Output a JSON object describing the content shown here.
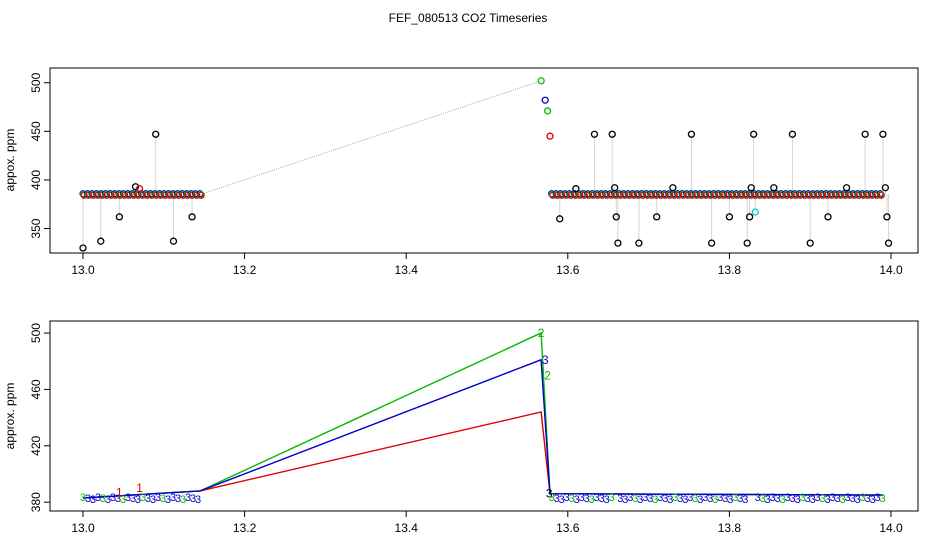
{
  "title": "FEF_080513  CO2 Timeseries",
  "colors": {
    "background": "#ffffff",
    "axis": "#000000",
    "connector": "#aaaaaa",
    "black": "#000000",
    "red": "#dd0000",
    "green": "#00bb00",
    "blue": "#0000cc",
    "cyan": "#00cccc"
  },
  "chart_data": [
    {
      "type": "scatter",
      "panel": "top",
      "xlabel": "",
      "ylabel": "appox. ppm",
      "xlim": [
        13.0,
        14.0
      ],
      "ylim": [
        330,
        510
      ],
      "x_ticks": [
        "13.0",
        "13.2",
        "13.4",
        "13.6",
        "13.8",
        "14.0"
      ],
      "y_ticks": [
        "350",
        "400",
        "450",
        "500"
      ],
      "grid": false,
      "background_points": {
        "ranges": [
          {
            "x_start": 13.0,
            "x_end": 13.145,
            "y": 385
          },
          {
            "x_start": 13.58,
            "x_end": 13.99,
            "y": 385
          }
        ],
        "colors": [
          "blue",
          "green",
          "red"
        ]
      },
      "outliers": [
        {
          "x": 13.0,
          "y": 330,
          "color": "black"
        },
        {
          "x": 13.022,
          "y": 337,
          "color": "black"
        },
        {
          "x": 13.045,
          "y": 362,
          "color": "black"
        },
        {
          "x": 13.065,
          "y": 393,
          "color": "black"
        },
        {
          "x": 13.07,
          "y": 391,
          "color": "red"
        },
        {
          "x": 13.09,
          "y": 447,
          "color": "black"
        },
        {
          "x": 13.112,
          "y": 337,
          "color": "black"
        },
        {
          "x": 13.135,
          "y": 362,
          "color": "black"
        },
        {
          "x": 13.567,
          "y": 502,
          "color": "green"
        },
        {
          "x": 13.572,
          "y": 482,
          "color": "blue"
        },
        {
          "x": 13.575,
          "y": 471,
          "color": "green"
        },
        {
          "x": 13.578,
          "y": 445,
          "color": "red"
        },
        {
          "x": 13.59,
          "y": 360,
          "color": "black"
        },
        {
          "x": 13.61,
          "y": 391,
          "color": "black"
        },
        {
          "x": 13.633,
          "y": 447,
          "color": "black"
        },
        {
          "x": 13.655,
          "y": 447,
          "color": "black"
        },
        {
          "x": 13.658,
          "y": 392,
          "color": "black"
        },
        {
          "x": 13.66,
          "y": 362,
          "color": "black"
        },
        {
          "x": 13.662,
          "y": 335,
          "color": "black"
        },
        {
          "x": 13.688,
          "y": 335,
          "color": "black"
        },
        {
          "x": 13.71,
          "y": 362,
          "color": "black"
        },
        {
          "x": 13.73,
          "y": 392,
          "color": "black"
        },
        {
          "x": 13.753,
          "y": 447,
          "color": "black"
        },
        {
          "x": 13.778,
          "y": 335,
          "color": "black"
        },
        {
          "x": 13.8,
          "y": 362,
          "color": "black"
        },
        {
          "x": 13.822,
          "y": 335,
          "color": "black"
        },
        {
          "x": 13.825,
          "y": 362,
          "color": "black"
        },
        {
          "x": 13.827,
          "y": 392,
          "color": "black"
        },
        {
          "x": 13.83,
          "y": 447,
          "color": "black"
        },
        {
          "x": 13.832,
          "y": 367,
          "color": "cyan"
        },
        {
          "x": 13.855,
          "y": 392,
          "color": "black"
        },
        {
          "x": 13.878,
          "y": 447,
          "color": "black"
        },
        {
          "x": 13.9,
          "y": 335,
          "color": "black"
        },
        {
          "x": 13.922,
          "y": 362,
          "color": "black"
        },
        {
          "x": 13.945,
          "y": 392,
          "color": "black"
        },
        {
          "x": 13.968,
          "y": 447,
          "color": "black"
        },
        {
          "x": 13.99,
          "y": 447,
          "color": "black"
        },
        {
          "x": 13.993,
          "y": 392,
          "color": "black"
        },
        {
          "x": 13.995,
          "y": 362,
          "color": "black"
        },
        {
          "x": 13.997,
          "y": 335,
          "color": "black"
        }
      ],
      "connector": {
        "from": {
          "x": 13.145,
          "y": 385
        },
        "to": {
          "x": 13.567,
          "y": 502
        }
      }
    },
    {
      "type": "line",
      "panel": "bottom",
      "xlabel": "",
      "ylabel": "approx. ppm",
      "xlim": [
        13.0,
        14.0
      ],
      "ylim": [
        378,
        505
      ],
      "x_ticks": [
        "13.0",
        "13.2",
        "13.4",
        "13.6",
        "13.8",
        "14.0"
      ],
      "y_ticks": [
        "380",
        "420",
        "460",
        "500"
      ],
      "grid": false,
      "series": [
        {
          "name": "1",
          "color": "red",
          "points": [
            [
              13.0,
              383
            ],
            [
              13.145,
              388
            ],
            [
              13.567,
              444
            ],
            [
              13.578,
              386
            ],
            [
              13.99,
              385
            ]
          ]
        },
        {
          "name": "2",
          "color": "green",
          "points": [
            [
              13.0,
              383
            ],
            [
              13.145,
              388
            ],
            [
              13.567,
              500
            ],
            [
              13.578,
              386
            ],
            [
              13.99,
              385
            ]
          ]
        },
        {
          "name": "3",
          "color": "blue",
          "points": [
            [
              13.0,
              383
            ],
            [
              13.145,
              388
            ],
            [
              13.567,
              481
            ],
            [
              13.578,
              386
            ],
            [
              13.99,
              385
            ]
          ]
        }
      ],
      "band_segments": [
        {
          "x_start": 13.0,
          "x_end": 13.145
        },
        {
          "x_start": 13.58,
          "x_end": 13.655
        },
        {
          "x_start": 13.665,
          "x_end": 13.82
        },
        {
          "x_start": 13.835,
          "x_end": 13.99
        }
      ],
      "labels": [
        {
          "text": "2",
          "x": 13.567,
          "y": 500,
          "color": "green"
        },
        {
          "text": "3",
          "x": 13.572,
          "y": 481,
          "color": "blue"
        },
        {
          "text": "2",
          "x": 13.575,
          "y": 470,
          "color": "green"
        },
        {
          "text": "1",
          "x": 13.07,
          "y": 390,
          "color": "red"
        },
        {
          "text": "1",
          "x": 13.045,
          "y": 387,
          "color": "red"
        },
        {
          "text": "3",
          "x": 13.577,
          "y": 386,
          "color": "black"
        }
      ],
      "band_label": "3"
    }
  ]
}
